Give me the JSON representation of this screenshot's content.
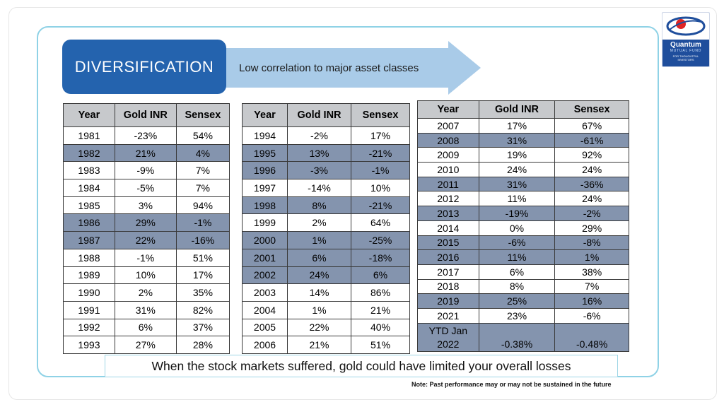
{
  "header": {
    "badge": "DIVERSIFICATION",
    "arrow_text": "Low correlation to major asset classes"
  },
  "logo": {
    "name": "Quantum",
    "sub": "MUTUAL FUND",
    "tagline_1": "FOR THOUGHTFUL",
    "tagline_2": "INVESTORS"
  },
  "columns": [
    "Year",
    "Gold INR",
    "Sensex"
  ],
  "table_1": [
    {
      "year": "1981",
      "gold": "-23%",
      "sensex": "54%",
      "hl": false
    },
    {
      "year": "1982",
      "gold": "21%",
      "sensex": "4%",
      "hl": true
    },
    {
      "year": "1983",
      "gold": "-9%",
      "sensex": "7%",
      "hl": false
    },
    {
      "year": "1984",
      "gold": "-5%",
      "sensex": "7%",
      "hl": false
    },
    {
      "year": "1985",
      "gold": "3%",
      "sensex": "94%",
      "hl": false
    },
    {
      "year": "1986",
      "gold": "29%",
      "sensex": "-1%",
      "hl": true
    },
    {
      "year": "1987",
      "gold": "22%",
      "sensex": "-16%",
      "hl": true
    },
    {
      "year": "1988",
      "gold": "-1%",
      "sensex": "51%",
      "hl": false
    },
    {
      "year": "1989",
      "gold": "10%",
      "sensex": "17%",
      "hl": false
    },
    {
      "year": "1990",
      "gold": "2%",
      "sensex": "35%",
      "hl": false
    },
    {
      "year": "1991",
      "gold": "31%",
      "sensex": "82%",
      "hl": false
    },
    {
      "year": "1992",
      "gold": "6%",
      "sensex": "37%",
      "hl": false
    },
    {
      "year": "1993",
      "gold": "27%",
      "sensex": "28%",
      "hl": false
    }
  ],
  "table_2": [
    {
      "year": "1994",
      "gold": "-2%",
      "sensex": "17%",
      "hl": false
    },
    {
      "year": "1995",
      "gold": "13%",
      "sensex": "-21%",
      "hl": true
    },
    {
      "year": "1996",
      "gold": "-3%",
      "sensex": "-1%",
      "hl": true
    },
    {
      "year": "1997",
      "gold": "-14%",
      "sensex": "10%",
      "hl": false
    },
    {
      "year": "1998",
      "gold": "8%",
      "sensex": "-21%",
      "hl": true
    },
    {
      "year": "1999",
      "gold": "2%",
      "sensex": "64%",
      "hl": false
    },
    {
      "year": "2000",
      "gold": "1%",
      "sensex": "-25%",
      "hl": true
    },
    {
      "year": "2001",
      "gold": "6%",
      "sensex": "-18%",
      "hl": true
    },
    {
      "year": "2002",
      "gold": "24%",
      "sensex": "6%",
      "hl": true
    },
    {
      "year": "2003",
      "gold": "14%",
      "sensex": "86%",
      "hl": false
    },
    {
      "year": "2004",
      "gold": "1%",
      "sensex": "21%",
      "hl": false
    },
    {
      "year": "2005",
      "gold": "22%",
      "sensex": "40%",
      "hl": false
    },
    {
      "year": "2006",
      "gold": "21%",
      "sensex": "51%",
      "hl": false
    }
  ],
  "table_3": [
    {
      "year": "2007",
      "gold": "17%",
      "sensex": "67%",
      "hl": false
    },
    {
      "year": "2008",
      "gold": "31%",
      "sensex": "-61%",
      "hl": true
    },
    {
      "year": "2009",
      "gold": "19%",
      "sensex": "92%",
      "hl": false
    },
    {
      "year": "2010",
      "gold": "24%",
      "sensex": "24%",
      "hl": false
    },
    {
      "year": "2011",
      "gold": "31%",
      "sensex": "-36%",
      "hl": true
    },
    {
      "year": "2012",
      "gold": "11%",
      "sensex": "24%",
      "hl": false
    },
    {
      "year": "2013",
      "gold": "-19%",
      "sensex": "-2%",
      "hl": true
    },
    {
      "year": "2014",
      "gold": "0%",
      "sensex": "29%",
      "hl": false
    },
    {
      "year": "2015",
      "gold": "-6%",
      "sensex": "-8%",
      "hl": true
    },
    {
      "year": "2016",
      "gold": "11%",
      "sensex": "1%",
      "hl": true
    },
    {
      "year": "2017",
      "gold": "6%",
      "sensex": "38%",
      "hl": false
    },
    {
      "year": "2018",
      "gold": "8%",
      "sensex": "7%",
      "hl": false
    },
    {
      "year": "2019",
      "gold": "25%",
      "sensex": "16%",
      "hl": true
    },
    {
      "year": "2021",
      "gold": "23%",
      "sensex": "-6%",
      "hl": false
    }
  ],
  "ytd_row": {
    "year_1": "YTD Jan",
    "year_2": "2022",
    "gold": "-0.38%",
    "sensex": "-0.48%"
  },
  "callout": "When the stock markets suffered, gold could have limited your overall losses",
  "note": "Note: Past performance may or may not be sustained in the future",
  "colors": {
    "badge": "#2463ae",
    "arrow": "#a9cbe8",
    "highlight_row": "#8494ae",
    "header_row": "#c7c9cc",
    "frame": "#8fd2e6"
  }
}
